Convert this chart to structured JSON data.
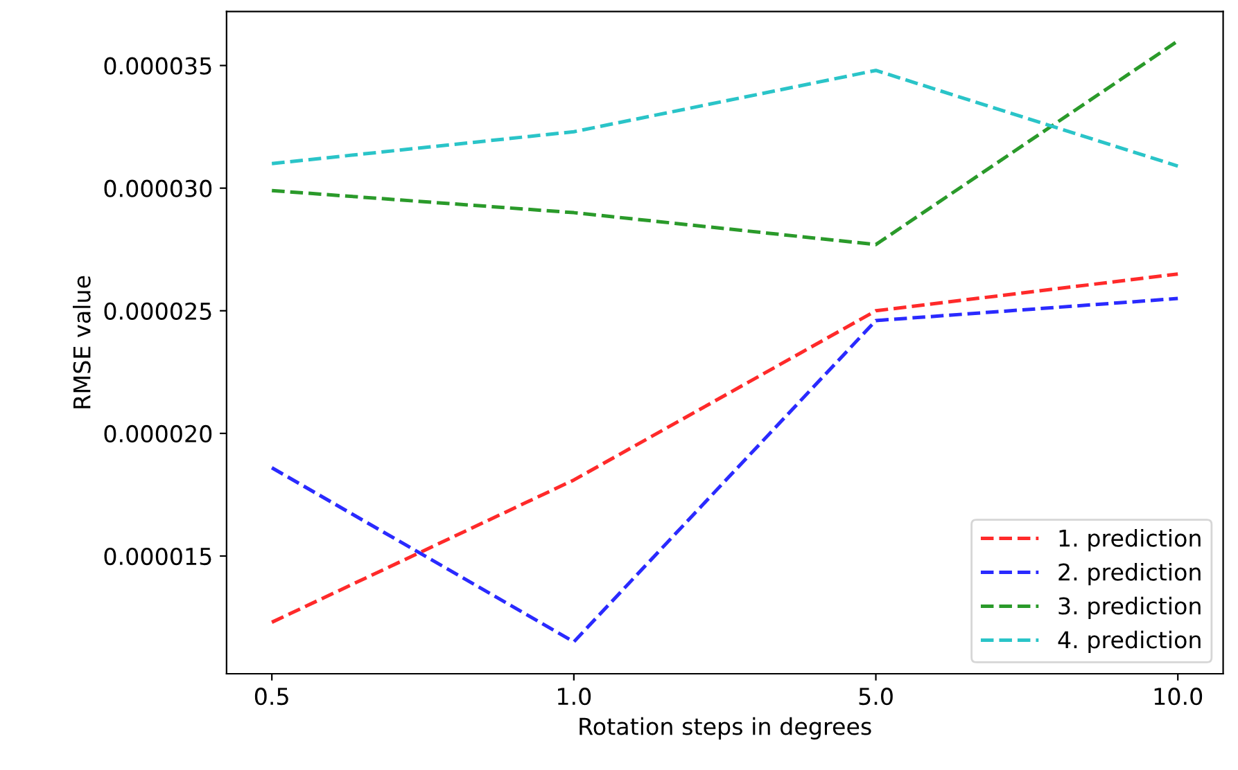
{
  "chart_data": {
    "type": "line",
    "xlabel": "Rotation steps in degrees",
    "ylabel": "RMSE value",
    "categories": [
      "0.5",
      "1.0",
      "5.0",
      "10.0"
    ],
    "series": [
      {
        "name": "1. prediction",
        "color": "#ff2a2a",
        "values": [
          1.23e-05,
          1.81e-05,
          2.5e-05,
          2.65e-05
        ]
      },
      {
        "name": "2. prediction",
        "color": "#2a2aff",
        "values": [
          1.86e-05,
          1.15e-05,
          2.46e-05,
          2.55e-05
        ]
      },
      {
        "name": "3. prediction",
        "color": "#2a9a2a",
        "values": [
          2.99e-05,
          2.9e-05,
          2.77e-05,
          3.6e-05
        ]
      },
      {
        "name": "4. prediction",
        "color": "#2ac4c8",
        "values": [
          3.1e-05,
          3.23e-05,
          3.48e-05,
          3.09e-05
        ]
      }
    ],
    "ylim": [
      1.02e-05,
      3.72e-05
    ],
    "yticks": [
      {
        "value": 1.5e-05,
        "label": "0.000015"
      },
      {
        "value": 2e-05,
        "label": "0.000020"
      },
      {
        "value": 2.5e-05,
        "label": "0.000025"
      },
      {
        "value": 3e-05,
        "label": "0.000030"
      },
      {
        "value": 3.5e-05,
        "label": "0.000035"
      }
    ],
    "line_style": "dashed",
    "marker": "none",
    "grid": false,
    "legend": "bottom right"
  }
}
